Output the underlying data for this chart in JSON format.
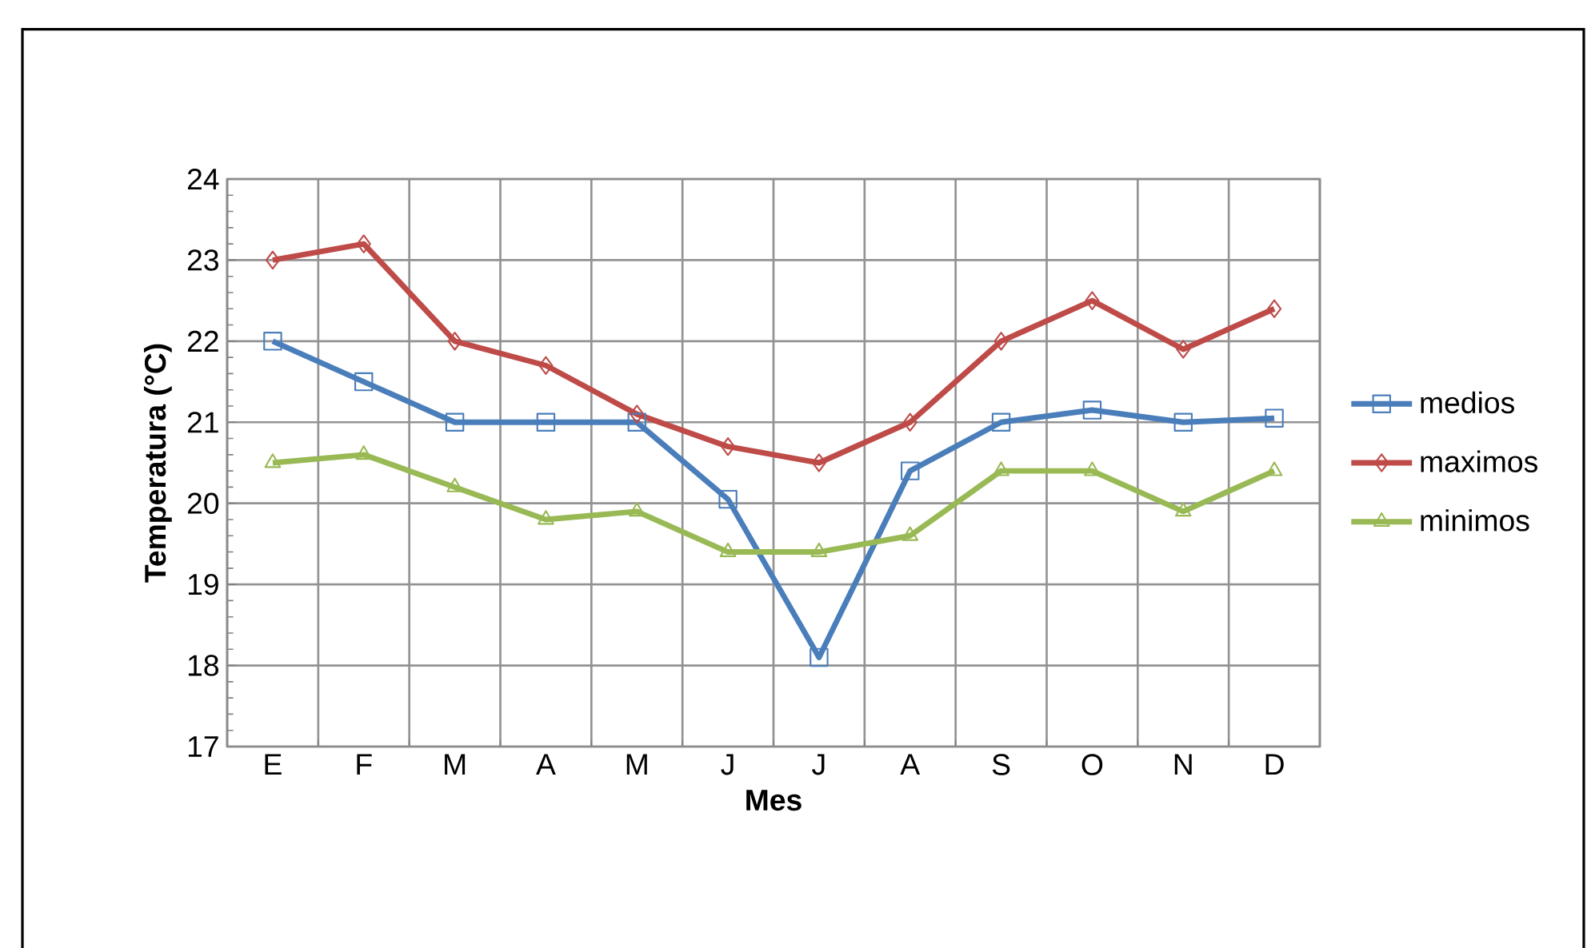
{
  "chart_data": {
    "type": "line",
    "xlabel": "Mes",
    "ylabel": "Temperatura (°C)",
    "categories": [
      "E",
      "F",
      "M",
      "A",
      "M",
      "J",
      "J",
      "A",
      "S",
      "O",
      "N",
      "D"
    ],
    "series": [
      {
        "name": "medios",
        "color": "#4a7ebb",
        "marker": "square",
        "values": [
          22,
          21.5,
          21,
          21,
          21,
          20.05,
          18.1,
          20.4,
          21,
          21.15,
          21,
          21.05
        ]
      },
      {
        "name": "maximos",
        "color": "#be4b48",
        "marker": "diamond",
        "values": [
          23,
          23.2,
          22,
          21.7,
          21.1,
          20.7,
          20.5,
          21,
          22,
          22.5,
          21.9,
          22.4
        ]
      },
      {
        "name": "minimos",
        "color": "#98b954",
        "marker": "triangle",
        "values": [
          20.5,
          20.6,
          20.2,
          19.8,
          19.9,
          19.4,
          19.4,
          19.6,
          20.4,
          20.4,
          19.9,
          20.4
        ]
      }
    ],
    "ylim": [
      17,
      24
    ],
    "yticks": [
      17,
      18,
      19,
      20,
      21,
      22,
      23,
      24
    ],
    "grid": true,
    "legend": "right",
    "line_style": "solid"
  }
}
